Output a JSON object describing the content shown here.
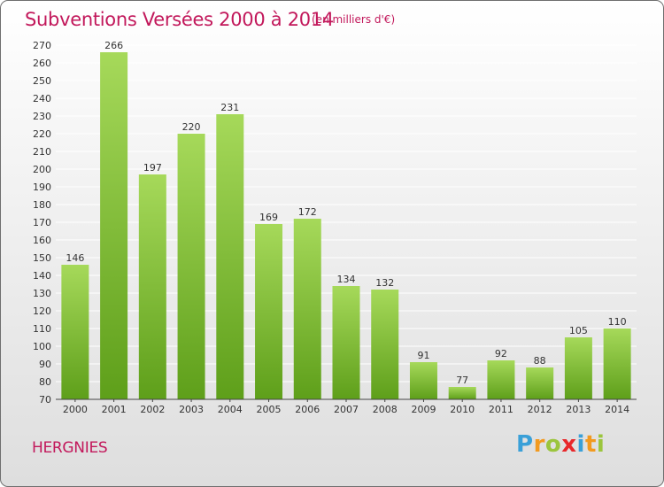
{
  "header": {
    "title": "Subventions Versées 2000 à 2014",
    "unit": "(en milliers d'€)"
  },
  "footer": {
    "place": "HERGNIES",
    "logo_letters": [
      {
        "ch": "P",
        "color": "#3aa0d8"
      },
      {
        "ch": "r",
        "color": "#f29a1f"
      },
      {
        "ch": "o",
        "color": "#9bc53d"
      },
      {
        "ch": "x",
        "color": "#e8282b"
      },
      {
        "ch": "i",
        "color": "#3aa0d8"
      },
      {
        "ch": "t",
        "color": "#f29a1f"
      },
      {
        "ch": "i",
        "color": "#9bc53d"
      }
    ]
  },
  "colors": {
    "accent": "#c2185b",
    "bar_light": "#a6d95a",
    "bar_dark": "#5e9f1a",
    "grid": "#ffffff"
  },
  "chart_data": {
    "type": "bar",
    "categories": [
      "2000",
      "2001",
      "2002",
      "2003",
      "2004",
      "2005",
      "2006",
      "2007",
      "2008",
      "2009",
      "2010",
      "2011",
      "2012",
      "2013",
      "2014"
    ],
    "values": [
      146,
      266,
      197,
      220,
      231,
      169,
      172,
      134,
      132,
      91,
      77,
      92,
      88,
      105,
      110
    ],
    "title": "Subventions Versées 2000 à 2014",
    "xlabel": "",
    "ylabel": "",
    "ylim": [
      70,
      270
    ],
    "yticks": [
      70,
      80,
      90,
      100,
      110,
      120,
      130,
      140,
      150,
      160,
      170,
      180,
      190,
      200,
      210,
      220,
      230,
      240,
      250,
      260,
      270
    ],
    "grid": true,
    "legend": "none"
  }
}
